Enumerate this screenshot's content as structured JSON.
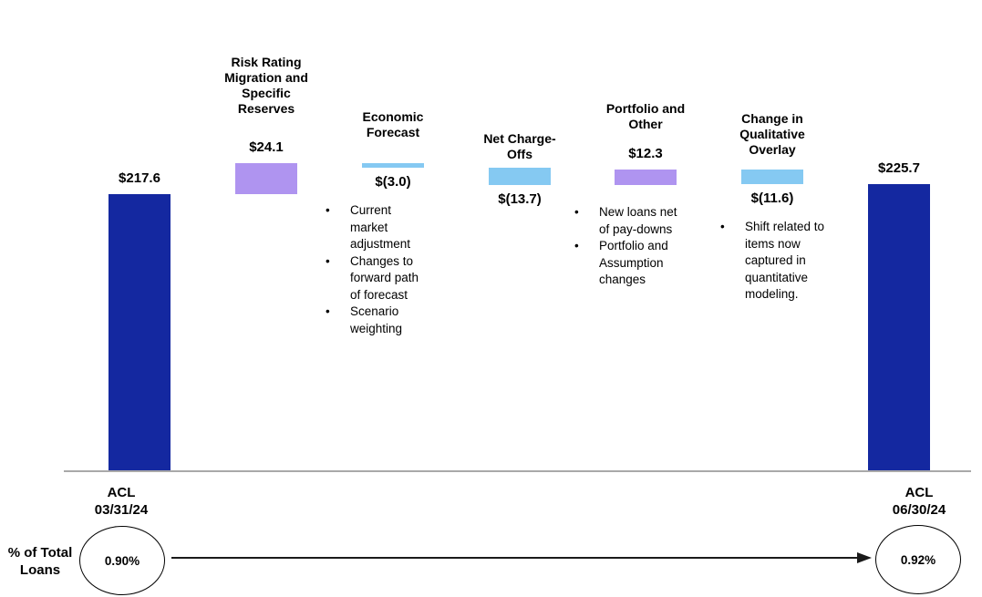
{
  "chart_data": {
    "type": "bar",
    "subtype": "waterfall",
    "title": "",
    "colors": {
      "navy": "#1428A0",
      "purple": "#AF94F0",
      "blue": "#85C9F2",
      "baseline": "#A9A9A9",
      "arrow": "#1a1a1a"
    },
    "columns": [
      {
        "id": "acl-start",
        "kind": "total",
        "value": 217.6,
        "value_label": "$217.6",
        "value_position": "above",
        "color": "navy",
        "header": "",
        "axis_label": "ACL\n03/31/24",
        "bullets": []
      },
      {
        "id": "risk-rating-migration",
        "kind": "delta",
        "value": 24.1,
        "value_label": "$24.1",
        "value_position": "above",
        "color": "purple",
        "header": "Risk Rating\nMigration and\nSpecific\nReserves",
        "axis_label": "",
        "bullets": []
      },
      {
        "id": "economic-forecast",
        "kind": "delta",
        "value": -3.0,
        "value_label": "$(3.0)",
        "value_position": "below",
        "color": "blue",
        "header": "Economic\nForecast",
        "axis_label": "",
        "bullets": [
          "Current market adjustment",
          "Changes to forward path of forecast",
          "Scenario weighting"
        ]
      },
      {
        "id": "net-charge-offs",
        "kind": "delta",
        "value": -13.7,
        "value_label": "$(13.7)",
        "value_position": "below",
        "color": "blue",
        "header": "Net Charge-\nOffs",
        "axis_label": "",
        "bullets": []
      },
      {
        "id": "portfolio-and-other",
        "kind": "delta",
        "value": 12.3,
        "value_label": "$12.3",
        "value_position": "above",
        "color": "purple",
        "header": "Portfolio and\nOther",
        "axis_label": "",
        "bullets": [
          "New loans net of pay-downs",
          "Portfolio and Assumption changes"
        ]
      },
      {
        "id": "change-in-qualitative-overlay",
        "kind": "delta",
        "value": -11.6,
        "value_label": "$(11.6)",
        "value_position": "below",
        "color": "blue",
        "header": "Change in\nQualitative\nOverlay",
        "axis_label": "",
        "bullets": [
          "Shift related to items now captured in quantitative modeling."
        ]
      },
      {
        "id": "acl-end",
        "kind": "total",
        "value": 225.7,
        "value_label": "$225.7",
        "value_position": "above",
        "color": "navy",
        "header": "",
        "axis_label": "ACL\n06/30/24",
        "bullets": []
      }
    ],
    "footer": {
      "row_label": "% of Total\nLoans",
      "start_pct": "0.90%",
      "end_pct": "0.92%"
    }
  }
}
